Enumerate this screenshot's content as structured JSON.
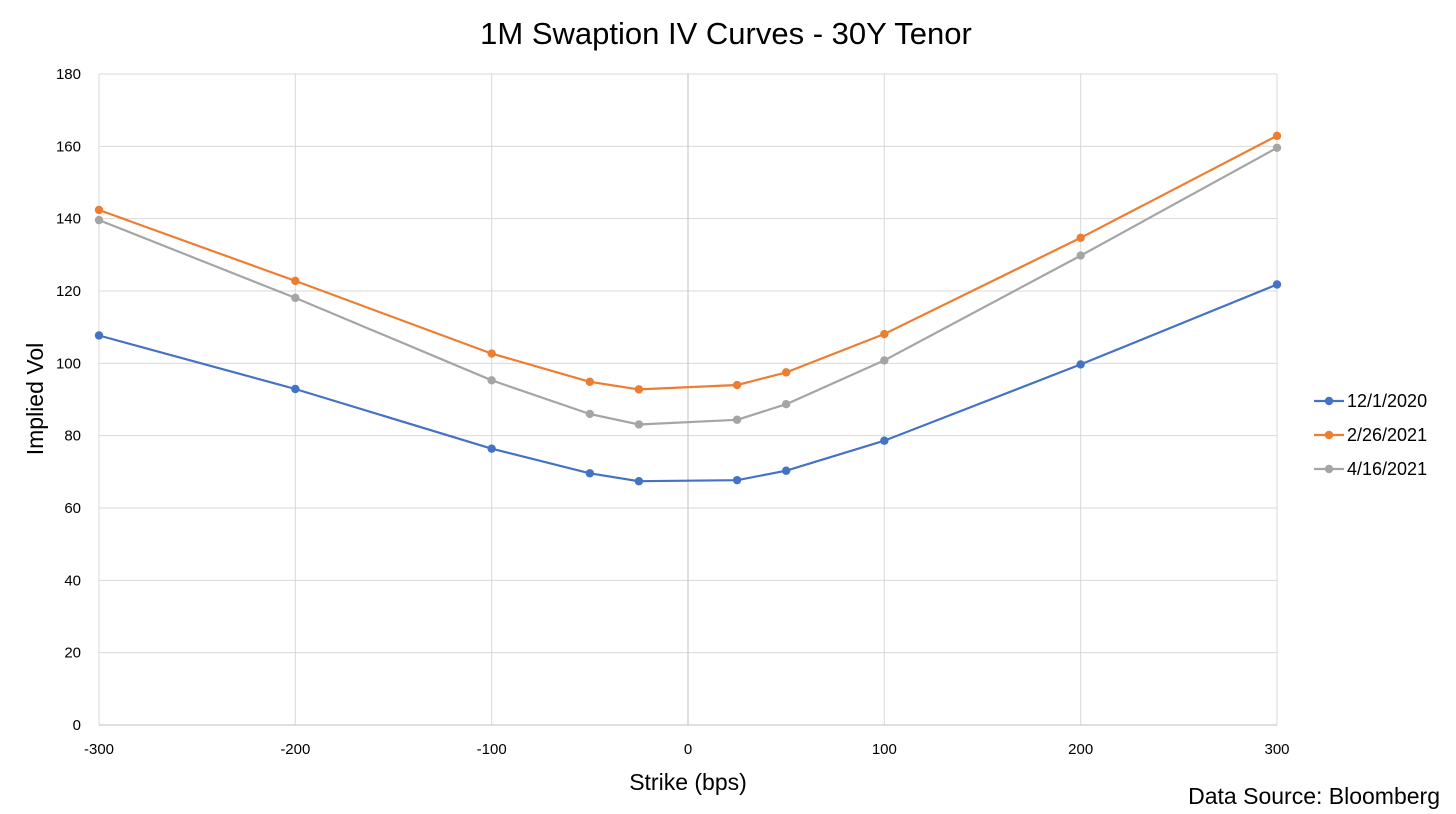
{
  "chart_data": {
    "type": "line",
    "title": "1M Swaption IV Curves - 30Y Tenor",
    "xlabel": "Strike (bps)",
    "ylabel": "Implied Vol",
    "xlim": [
      -300,
      300
    ],
    "ylim": [
      0,
      180
    ],
    "x_ticks": [
      -300,
      -200,
      -100,
      0,
      100,
      200,
      300
    ],
    "y_ticks": [
      0,
      20,
      40,
      60,
      80,
      100,
      120,
      140,
      160,
      180
    ],
    "grid": true,
    "legend_position": "right",
    "x": [
      -300,
      -200,
      -100,
      -50,
      -25,
      25,
      50,
      100,
      200,
      300
    ],
    "series": [
      {
        "name": "12/1/2020",
        "color": "#4472C4",
        "values": [
          107.7,
          92.9,
          76.4,
          69.6,
          67.4,
          67.7,
          70.3,
          78.6,
          99.7,
          121.8
        ]
      },
      {
        "name": "2/26/2021",
        "color": "#ED7D31",
        "values": [
          142.4,
          122.8,
          102.7,
          94.9,
          92.8,
          94.0,
          97.5,
          108.1,
          134.7,
          162.9
        ]
      },
      {
        "name": "4/16/2021",
        "color": "#A5A5A5",
        "values": [
          139.6,
          118.1,
          95.3,
          86.0,
          83.1,
          84.4,
          88.7,
          100.8,
          129.8,
          159.6
        ]
      }
    ]
  },
  "footer": {
    "source": "Data Source: Bloomberg"
  }
}
